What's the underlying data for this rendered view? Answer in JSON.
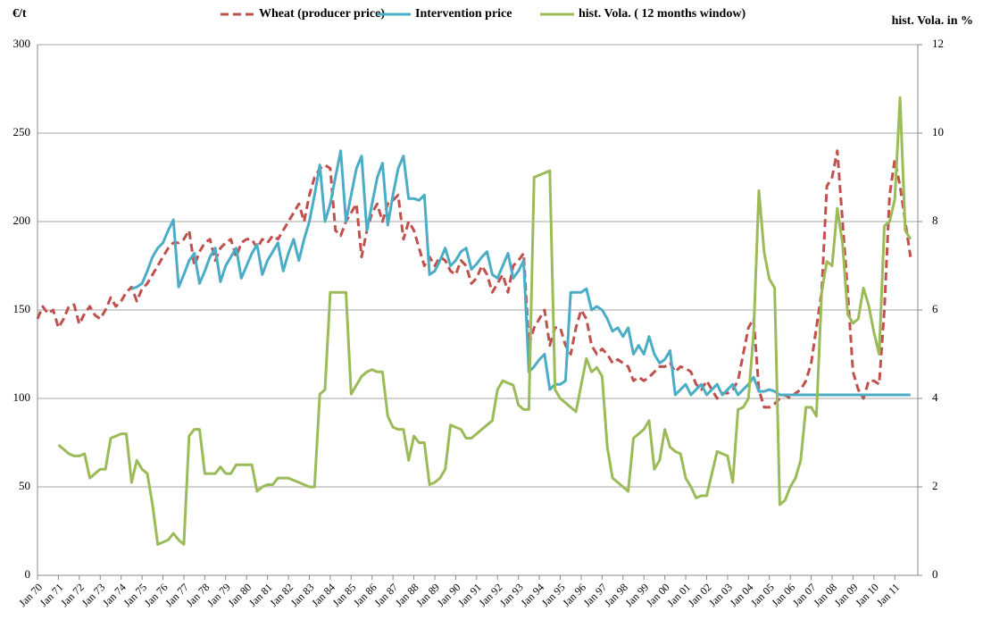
{
  "chart_data": {
    "type": "line",
    "y_label": "€/t",
    "y2_label": "hist. Vola. in %",
    "categories": [
      "Jan 70",
      null,
      null,
      null,
      "Jan 71",
      null,
      null,
      null,
      "Jan 72",
      null,
      null,
      null,
      "Jan 73",
      null,
      null,
      null,
      "Jan 74",
      null,
      null,
      null,
      "Jan 75",
      null,
      null,
      null,
      "Jan 76",
      null,
      null,
      null,
      "Jan 77",
      null,
      null,
      null,
      "Jan 78",
      null,
      null,
      null,
      "Jan 79",
      null,
      null,
      null,
      "Jan 80",
      null,
      null,
      null,
      "Jan 81",
      null,
      null,
      null,
      "Jan 82",
      null,
      null,
      null,
      "Jan 83",
      null,
      null,
      null,
      "Jan 84",
      null,
      null,
      null,
      "Jan 85",
      null,
      null,
      null,
      "Jan 86",
      null,
      null,
      null,
      "Jan 87",
      null,
      null,
      null,
      "Jan 88",
      null,
      null,
      null,
      "Jan 89",
      null,
      null,
      null,
      "Jan 90",
      null,
      null,
      null,
      "Jan 91",
      null,
      null,
      null,
      "Jan 92",
      null,
      null,
      null,
      "Jan 93",
      null,
      null,
      null,
      "Jan 94",
      null,
      null,
      null,
      "Jan 95",
      null,
      null,
      null,
      "Jan 96",
      null,
      null,
      null,
      "Jan 97",
      null,
      null,
      null,
      "Jan 98",
      null,
      null,
      null,
      "Jan 99",
      null,
      null,
      null,
      "Jan 00",
      null,
      null,
      null,
      "Jan 01",
      null,
      null,
      null,
      "Jan 02",
      null,
      null,
      null,
      "Jan 03",
      null,
      null,
      null,
      "Jan 04",
      null,
      null,
      null,
      "Jan 05",
      null,
      null,
      null,
      "Jan 06",
      null,
      null,
      null,
      "Jan 07",
      null,
      null,
      null,
      "Jan 08",
      null,
      null,
      null,
      "Jan 09",
      null,
      null,
      null,
      "Jan 10",
      null,
      null,
      null,
      "Jan 11",
      null,
      null,
      null
    ],
    "series": [
      {
        "name": "Wheat (producer price)",
        "color": "#c0504d",
        "line_style": "dashed",
        "axis": "y",
        "values": [
          145,
          152,
          148,
          150,
          140,
          145,
          152,
          153,
          142,
          148,
          152,
          147,
          145,
          150,
          157,
          152,
          155,
          160,
          163,
          155,
          162,
          165,
          170,
          175,
          180,
          185,
          188,
          188,
          190,
          195,
          175,
          183,
          188,
          190,
          178,
          185,
          188,
          190,
          180,
          188,
          190,
          190,
          185,
          190,
          188,
          192,
          190,
          195,
          200,
          205,
          210,
          200,
          215,
          225,
          230,
          232,
          230,
          195,
          192,
          200,
          205,
          210,
          180,
          195,
          205,
          210,
          200,
          210,
          212,
          215,
          190,
          200,
          195,
          185,
          175,
          180,
          175,
          180,
          178,
          172,
          170,
          178,
          175,
          165,
          168,
          175,
          170,
          160,
          165,
          170,
          160,
          175,
          178,
          182,
          130,
          140,
          145,
          150,
          130,
          140,
          140,
          130,
          125,
          140,
          150,
          145,
          130,
          125,
          128,
          125,
          120,
          122,
          120,
          118,
          110,
          112,
          110,
          112,
          115,
          118,
          118,
          120,
          115,
          118,
          117,
          115,
          108,
          105,
          110,
          105,
          100,
          103,
          103,
          105,
          110,
          125,
          140,
          145,
          105,
          95,
          95,
          97,
          100,
          102,
          100,
          103,
          105,
          110,
          120,
          140,
          160,
          220,
          225,
          240,
          200,
          160,
          115,
          105,
          100,
          110,
          110,
          108,
          150,
          215,
          235,
          220,
          200,
          180
        ]
      },
      {
        "name": "Intervention price",
        "color": "#4bacc6",
        "line_style": "solid",
        "axis": "y",
        "values": [
          null,
          null,
          null,
          null,
          null,
          null,
          null,
          null,
          null,
          null,
          null,
          null,
          null,
          null,
          null,
          null,
          null,
          null,
          162,
          163,
          165,
          172,
          180,
          185,
          188,
          195,
          201,
          163,
          170,
          178,
          182,
          165,
          172,
          180,
          185,
          166,
          175,
          180,
          185,
          168,
          175,
          182,
          187,
          170,
          178,
          183,
          188,
          172,
          182,
          190,
          178,
          190,
          200,
          215,
          232,
          200,
          210,
          225,
          240,
          200,
          215,
          230,
          237,
          195,
          210,
          225,
          233,
          198,
          215,
          230,
          237,
          213,
          213,
          212,
          215,
          170,
          172,
          178,
          185,
          175,
          178,
          183,
          185,
          173,
          176,
          180,
          183,
          170,
          168,
          175,
          182,
          168,
          172,
          178,
          115,
          118,
          122,
          125,
          105,
          108,
          108,
          110,
          160,
          160,
          160,
          162,
          150,
          152,
          150,
          145,
          138,
          140,
          135,
          140,
          125,
          130,
          125,
          135,
          125,
          120,
          122,
          127,
          102,
          105,
          108,
          102,
          105,
          108,
          102,
          105,
          108,
          102,
          105,
          108,
          102,
          105,
          108,
          112,
          104,
          104,
          105,
          104,
          102,
          102,
          102,
          102,
          102,
          102,
          102,
          102,
          102,
          102,
          102,
          102,
          102,
          102,
          102,
          102,
          102,
          102,
          102,
          102,
          102,
          102,
          102,
          102,
          102,
          102
        ]
      },
      {
        "name": "hist. Vola. ( 12 months window)",
        "color": "#9bbb59",
        "line_style": "solid",
        "axis": "y2",
        "values": [
          null,
          null,
          null,
          null,
          2.95,
          2.85,
          2.75,
          2.7,
          2.7,
          2.75,
          2.2,
          2.3,
          2.4,
          2.4,
          3.1,
          3.15,
          3.2,
          3.2,
          2.1,
          2.6,
          2.4,
          2.3,
          1.6,
          0.7,
          0.75,
          0.8,
          0.95,
          0.8,
          0.7,
          3.15,
          3.3,
          3.3,
          2.3,
          2.3,
          2.3,
          2.45,
          2.3,
          2.3,
          2.5,
          2.5,
          2.5,
          2.5,
          1.9,
          2.0,
          2.05,
          2.05,
          2.2,
          2.2,
          2.2,
          2.15,
          2.1,
          2.05,
          2.0,
          2.0,
          4.1,
          4.2,
          6.4,
          6.4,
          6.4,
          6.4,
          4.1,
          4.3,
          4.5,
          4.6,
          4.65,
          4.6,
          4.6,
          3.6,
          3.35,
          3.3,
          3.3,
          2.6,
          3.15,
          3.0,
          3.0,
          2.05,
          2.1,
          2.2,
          2.4,
          3.4,
          3.35,
          3.3,
          3.1,
          3.1,
          3.2,
          3.3,
          3.4,
          3.5,
          4.2,
          4.4,
          4.35,
          4.3,
          3.85,
          3.75,
          3.75,
          9.0,
          9.05,
          9.1,
          9.15,
          4.2,
          4.0,
          3.9,
          3.8,
          3.7,
          4.3,
          4.9,
          4.6,
          4.7,
          4.5,
          2.9,
          2.2,
          2.1,
          2.0,
          1.9,
          3.1,
          3.2,
          3.3,
          3.5,
          2.4,
          2.6,
          3.3,
          2.9,
          2.8,
          2.75,
          2.2,
          2.0,
          1.75,
          1.8,
          1.8,
          2.3,
          2.8,
          2.75,
          2.7,
          2.1,
          3.75,
          3.8,
          4.0,
          5.5,
          8.7,
          7.3,
          6.7,
          6.5,
          1.6,
          1.7,
          2.0,
          2.2,
          2.6,
          3.8,
          3.8,
          3.6,
          6.4,
          7.1,
          7.0,
          8.3,
          7.5,
          5.9,
          5.7,
          5.8,
          6.5,
          6.1,
          5.5,
          5.0,
          7.9,
          8.0,
          8.5,
          10.8,
          7.8,
          7.6
        ]
      }
    ],
    "ylim": [
      0,
      300
    ],
    "yticks": [
      0,
      50,
      100,
      150,
      200,
      250,
      300
    ],
    "y2lim": [
      0,
      12
    ],
    "y2ticks": [
      0,
      2,
      4,
      6,
      8,
      10,
      12
    ],
    "grid": true
  }
}
